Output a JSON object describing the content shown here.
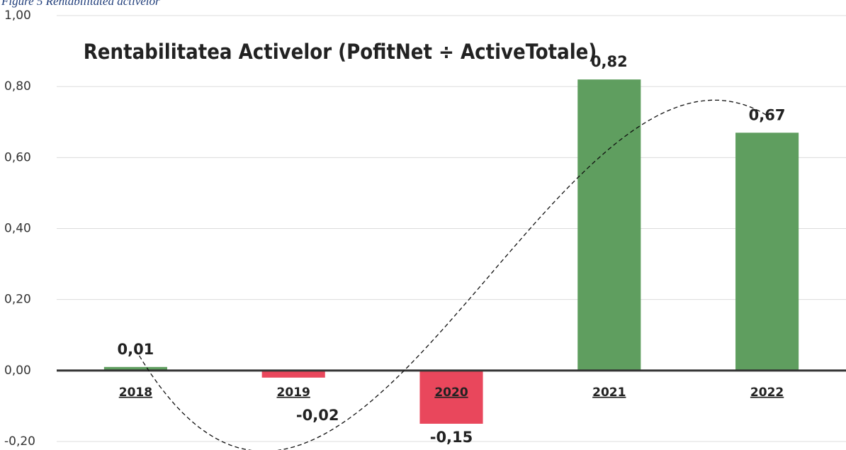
{
  "chart_data": {
    "type": "bar",
    "caption": "Figure 5 Rentabilitatea activelor",
    "title": "Rentabilitatea Activelor (PofitNet ÷ ActiveTotale)",
    "categories": [
      "2018",
      "2019",
      "2020",
      "2021",
      "2022"
    ],
    "values": [
      0.01,
      -0.02,
      -0.15,
      0.82,
      0.67
    ],
    "value_labels": [
      "0,01",
      "-0,02",
      "-0,15",
      "0,82",
      "0,67"
    ],
    "colors": [
      "#5f9e5f",
      "#e9475c",
      "#e9475c",
      "#5f9e5f",
      "#5f9e5f"
    ],
    "ylim": [
      -0.2,
      1.0
    ],
    "yticks": [
      {
        "value": -0.2,
        "label": "-0,20"
      },
      {
        "value": 0,
        "label": "0,00"
      },
      {
        "value": 0.2,
        "label": "0,20"
      },
      {
        "value": 0.4,
        "label": "0,40"
      },
      {
        "value": 0.6,
        "label": "0,60"
      },
      {
        "value": 0.8,
        "label": "0,80"
      },
      {
        "value": 1.0,
        "label": "1,00"
      }
    ],
    "grid": true,
    "trendline": {
      "type": "polynomial",
      "order": 3
    }
  }
}
